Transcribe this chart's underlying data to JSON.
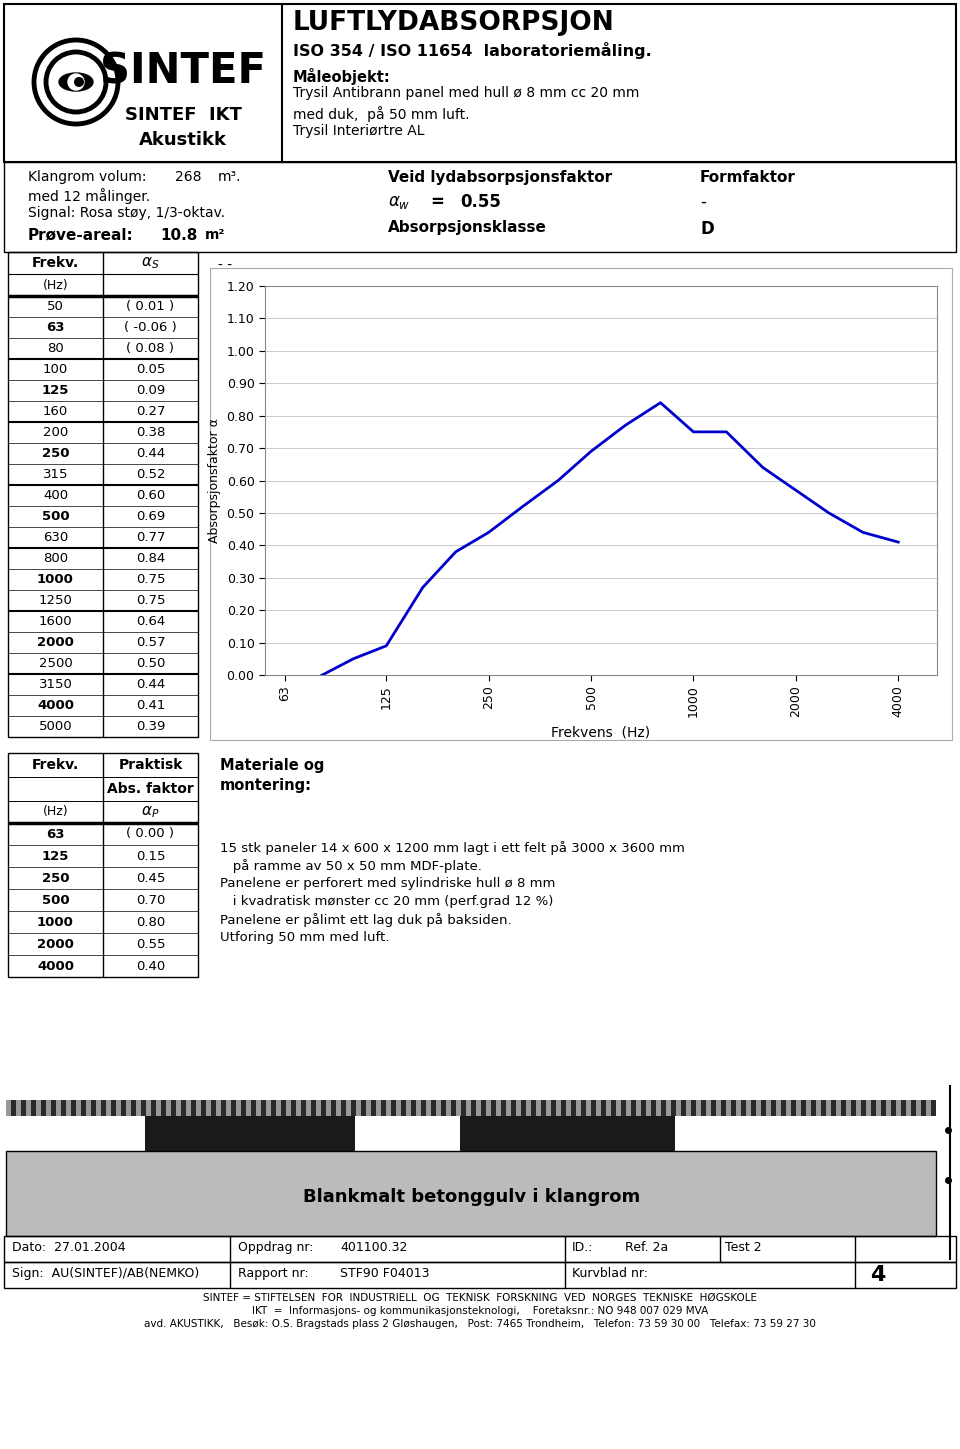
{
  "title_main": "LUFTLYDABSORPSJON",
  "title_sub1": "ISO 354 / ISO 11654  laboratoriemåling.",
  "maleobjekt_label": "Måleobjekt:",
  "maleobjekt_line1": "Trysil Antibrann panel med hull ø 8 mm cc 20 mm",
  "maleobjekt_line2": "med duk,  på 50 mm luft.",
  "maleobjekt_line3": "Trysil Interiørtre AL",
  "sintef_ikt": "SINTEF  IKT",
  "akustikk": "Akustikk",
  "klangrom_volum_label": "Klangrom volum:",
  "klangrom_volum_val": "268",
  "klangrom_volum_unit": "m³.",
  "med_malinger": "med 12 målinger.",
  "signal": "Signal: Rosa støy, 1/3-oktav.",
  "veid_label": "Veid lydabsorpsjonsfaktor",
  "formfaktor_label": "Formfaktor",
  "alpha_w_val": "0.55",
  "formfaktor_val": "-",
  "absorpsjonsklasse_label": "Absorpsjonsklasse",
  "absorpsjonsklasse_val": "D",
  "prove_areal_label": "Prøve-areal:",
  "prove_areal_val": "10.8",
  "prove_areal_unit": "m²",
  "frekv_header": "Frekv.",
  "hz_header": "(Hz)",
  "table1_freqs": [
    50,
    63,
    80,
    100,
    125,
    160,
    200,
    250,
    315,
    400,
    500,
    630,
    800,
    1000,
    1250,
    1600,
    2000,
    2500,
    3150,
    4000,
    5000
  ],
  "table1_values": [
    "( 0.01 )",
    "( -0.06 )",
    "( 0.08 )",
    "0.05",
    "0.09",
    "0.27",
    "0.38",
    "0.44",
    "0.52",
    "0.60",
    "0.69",
    "0.77",
    "0.84",
    "0.75",
    "0.75",
    "0.64",
    "0.57",
    "0.50",
    "0.44",
    "0.41",
    "0.39"
  ],
  "table1_bold_freqs": [
    63,
    125,
    250,
    500,
    1000,
    2000,
    4000
  ],
  "table1_group_ends_after": [
    2,
    5,
    8,
    11,
    14,
    17
  ],
  "table2_freqs": [
    63,
    125,
    250,
    500,
    1000,
    2000,
    4000
  ],
  "table2_values": [
    "( 0.00 )",
    "0.15",
    "0.45",
    "0.70",
    "0.80",
    "0.55",
    "0.40"
  ],
  "materiale_text1": "15 stk paneler 14 x 600 x 1200 mm lagt i ett felt på 3000 x 3600 mm",
  "materiale_text2": "   på ramme av 50 x 50 mm MDF-plate.",
  "materiale_text3": "Panelene er perforert med sylindriske hull ø 8 mm",
  "materiale_text4": "   i kvadratisk mønster cc 20 mm (perf.grad 12 %)",
  "materiale_text5": "Panelene er pålimt ett lag duk på baksiden.",
  "materiale_text6": "Utforing 50 mm med luft.",
  "graph_freqs": [
    63,
    100,
    125,
    160,
    200,
    250,
    315,
    400,
    500,
    630,
    800,
    1000,
    1250,
    1600,
    2000,
    2500,
    3150,
    4000
  ],
  "graph_values": [
    -0.06,
    0.05,
    0.09,
    0.27,
    0.38,
    0.44,
    0.52,
    0.6,
    0.69,
    0.77,
    0.84,
    0.75,
    0.75,
    0.64,
    0.57,
    0.5,
    0.44,
    0.41
  ],
  "graph_x_ticks": [
    63,
    125,
    250,
    500,
    1000,
    2000,
    4000
  ],
  "graph_y_ticks": [
    0.0,
    0.1,
    0.2,
    0.3,
    0.4,
    0.5,
    0.6,
    0.7,
    0.8,
    0.9,
    1.0,
    1.1,
    1.2
  ],
  "graph_line_color": "#0000CC",
  "graph_ylabel": "Absorpsjonsfaktor α",
  "graph_xlabel": "Frekvens  (Hz)",
  "dato": "Dato:  27.01.2004",
  "oppdrag_nr": "Oppdrag nr:",
  "oppdrag_val": "401100.32",
  "id_label": "ID.:",
  "ref_label": "Ref. 2a",
  "test_label": "Test 2",
  "sign": "Sign:  AU(SINTEF)/AB(NEMKO)",
  "rapport_label": "Rapport nr:",
  "rapport_val": "STF90 F04013",
  "kurvblad_label": "Kurvblad nr:",
  "kurvblad_val": "4",
  "footer1": "SINTEF = STIFTELSEN  FOR  INDUSTRIELL  OG  TEKNISK  FORSKNING  VED  NORGES  TEKNISKE  HØGSKOLE",
  "footer2": "IKT  =  Informasjons- og kommunikasjonsteknologi,    Foretaksnr.: NO 948 007 029 MVA",
  "footer3": "avd. AKUSTIKK,   Besøk: O.S. Bragstads plass 2 Gløshaugen,   Post: 7465 Trondheim,   Telefon: 73 59 30 00   Telefax: 73 59 27 30",
  "blankmalt_text": "Blankmalt betonggulv i klangrom",
  "bg_color": "#FFFFFF"
}
